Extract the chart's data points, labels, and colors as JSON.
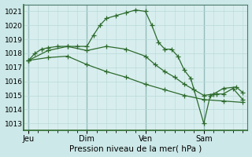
{
  "bg_color": "#cce8e8",
  "plot_bg": "#d8eeee",
  "grid_color": "#b8d8d8",
  "line_color": "#2d6a2d",
  "vline_color": "#6a9a9a",
  "ylim": [
    1012.5,
    1021.5
  ],
  "yticks": [
    1013,
    1014,
    1015,
    1016,
    1017,
    1018,
    1019,
    1020,
    1021
  ],
  "ytick_fontsize": 6.5,
  "xlabel": "Pression niveau de la mer( hPa )",
  "xlabel_fontsize": 7.5,
  "xtick_labels": [
    "Jeu",
    "Dim",
    "Ven",
    "Sam"
  ],
  "xtick_positions": [
    0,
    36,
    72,
    108
  ],
  "xlim": [
    -3,
    135
  ],
  "vline_positions": [
    0,
    36,
    72,
    108
  ],
  "lines": [
    {
      "x": [
        0,
        4,
        8,
        12,
        18,
        24,
        30,
        36,
        40,
        44,
        48,
        54,
        60,
        66,
        72,
        76,
        80,
        84,
        88,
        92,
        96,
        100,
        108,
        112,
        116,
        120,
        126,
        132
      ],
      "y": [
        1017.5,
        1018.0,
        1018.3,
        1018.4,
        1018.5,
        1018.5,
        1018.5,
        1018.5,
        1019.3,
        1020.0,
        1020.5,
        1020.7,
        1020.9,
        1021.1,
        1021.0,
        1020.0,
        1018.8,
        1018.3,
        1018.3,
        1017.8,
        1016.8,
        1016.2,
        1013.0,
        1015.0,
        1015.1,
        1015.1,
        1015.5,
        1014.7
      ]
    },
    {
      "x": [
        0,
        12,
        24,
        36,
        48,
        60,
        72,
        78,
        84,
        90,
        96,
        102,
        108,
        114,
        120,
        128,
        132
      ],
      "y": [
        1017.5,
        1018.2,
        1018.5,
        1018.2,
        1018.5,
        1018.3,
        1017.8,
        1017.2,
        1016.7,
        1016.3,
        1015.8,
        1015.4,
        1015.0,
        1015.1,
        1015.5,
        1015.6,
        1015.2
      ]
    },
    {
      "x": [
        0,
        12,
        24,
        36,
        48,
        60,
        72,
        84,
        96,
        108,
        120,
        132
      ],
      "y": [
        1017.5,
        1017.7,
        1017.8,
        1017.2,
        1016.7,
        1016.3,
        1015.8,
        1015.4,
        1015.0,
        1014.7,
        1014.6,
        1014.5
      ]
    }
  ]
}
